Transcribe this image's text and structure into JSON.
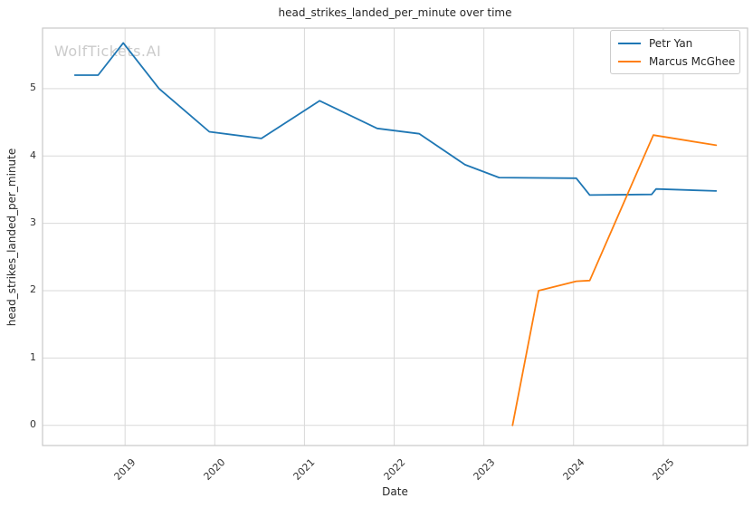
{
  "chart_data": {
    "type": "line",
    "title": "head_strikes_landed_per_minute over time",
    "xlabel": "Date",
    "ylabel": "head_strikes_landed_per_minute",
    "watermark": "WolfTickets.AI",
    "grid": true,
    "legend_position": "upper right",
    "xlim": [
      2018.08,
      2025.94
    ],
    "ylim": [
      -0.3,
      5.9
    ],
    "xticks": [
      "2019",
      "2020",
      "2021",
      "2022",
      "2023",
      "2024",
      "2025"
    ],
    "yticks": [
      "0",
      "1",
      "2",
      "3",
      "4",
      "5"
    ],
    "grid_color": "#d9d9d9",
    "spine_color": "#c9c9c9",
    "series": [
      {
        "name": "Petr Yan",
        "color": "#1f77b4",
        "x": [
          2018.44,
          2018.7,
          2018.98,
          2019.38,
          2019.94,
          2020.52,
          2021.17,
          2021.81,
          2022.28,
          2022.79,
          2023.17,
          2024.03,
          2024.18,
          2024.87,
          2024.92,
          2025.59
        ],
        "y": [
          5.2,
          5.2,
          5.68,
          5.0,
          4.36,
          4.26,
          4.82,
          4.41,
          4.33,
          3.87,
          3.68,
          3.67,
          3.42,
          3.43,
          3.51,
          3.48
        ]
      },
      {
        "name": "Marcus McGhee",
        "color": "#ff7f0e",
        "x": [
          2023.32,
          2023.61,
          2024.03,
          2024.18,
          2024.89,
          2025.59
        ],
        "y": [
          0.0,
          2.0,
          2.14,
          2.15,
          4.31,
          4.16
        ]
      }
    ]
  }
}
